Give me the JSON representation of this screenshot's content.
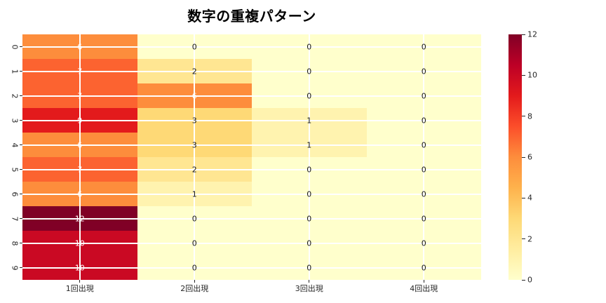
{
  "chart_data": {
    "type": "heatmap",
    "title": "数字の重複パターン",
    "rows": [
      "0",
      "1",
      "2",
      "3",
      "4",
      "5",
      "6",
      "7",
      "8",
      "9"
    ],
    "columns": [
      "1回出現",
      "2回出現",
      "3回出現",
      "4回出現"
    ],
    "values": [
      [
        6,
        0,
        0,
        0
      ],
      [
        7,
        2,
        0,
        0
      ],
      [
        7,
        6,
        0,
        0
      ],
      [
        9,
        3,
        1,
        0
      ],
      [
        6,
        3,
        1,
        0
      ],
      [
        7,
        2,
        0,
        0
      ],
      [
        6,
        1,
        0,
        0
      ],
      [
        12,
        0,
        0,
        0
      ],
      [
        10,
        0,
        0,
        0
      ],
      [
        10,
        0,
        0,
        0
      ]
    ],
    "vmin": 0,
    "vmax": 12,
    "colorbar_ticks": [
      0,
      2,
      4,
      6,
      8,
      10,
      12
    ],
    "colormap": "YlOrRd",
    "grid": true,
    "annotated": true,
    "colorbar_position": "right",
    "xlabel": "",
    "ylabel": ""
  },
  "colors": {
    "background": "#ffffff",
    "grid_line": "#ffffff",
    "tick_text": "#262626",
    "annotation_dark": "#151515",
    "annotation_light": "#ffffff",
    "white_text_min_value": 6,
    "colormap_stops": [
      "#ffffcc",
      "#ffeda0",
      "#fed976",
      "#feb24c",
      "#fd8d3c",
      "#fc4e2a",
      "#e31a1c",
      "#bd0026",
      "#800026"
    ]
  }
}
